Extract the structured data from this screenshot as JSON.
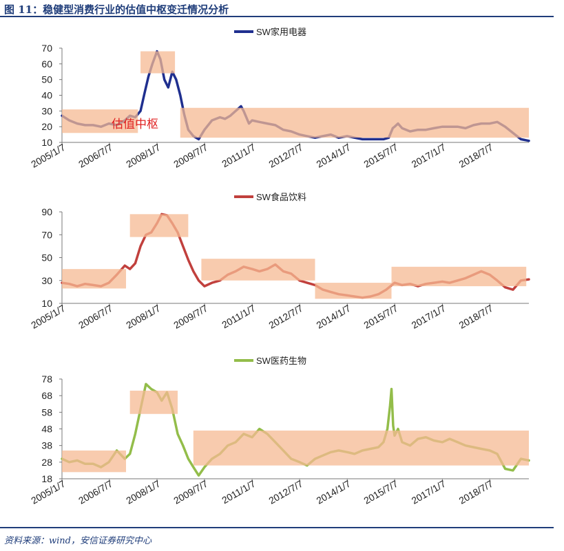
{
  "figure": {
    "title": "图 11：稳健型消费行业的估值中枢变迁情况分析",
    "source": "资料来源：wind，安信证券研究中心",
    "annotation": "估值中枢",
    "annotation_color": "#e02020",
    "band_color": "#f5b993"
  },
  "chart_data": [
    {
      "type": "line",
      "legend": "SW家用电器",
      "legend_position": "top-center",
      "color": "#1f2f8f",
      "y_ticks": [
        10,
        20,
        30,
        40,
        50,
        60,
        70
      ],
      "ylim": [
        10,
        70
      ],
      "x_ticks": [
        "2005/1/7",
        "2006/7/7",
        "2008/1/7",
        "2009/7/7",
        "2011/1/7",
        "2012/7/7",
        "2014/1/7",
        "2015/7/7",
        "2017/1/7",
        "2018/7/7"
      ],
      "xlim": [
        "2005/1/7",
        "2019/10/1"
      ],
      "x": [
        "2005/1/7",
        "2005/4/1",
        "2005/7/1",
        "2005/10/1",
        "2006/1/1",
        "2006/4/1",
        "2006/7/1",
        "2006/10/1",
        "2007/1/1",
        "2007/3/1",
        "2007/5/1",
        "2007/7/1",
        "2007/8/15",
        "2007/10/1",
        "2007/11/15",
        "2008/1/7",
        "2008/2/15",
        "2008/4/1",
        "2008/5/15",
        "2008/7/1",
        "2008/8/15",
        "2008/10/1",
        "2008/11/15",
        "2009/1/1",
        "2009/3/1",
        "2009/5/1",
        "2009/7/7",
        "2009/10/1",
        "2010/1/1",
        "2010/3/1",
        "2010/5/1",
        "2010/7/1",
        "2010/9/1",
        "2010/10/1",
        "2010/12/1",
        "2011/1/7",
        "2011/4/1",
        "2011/7/1",
        "2011/10/1",
        "2012/1/1",
        "2012/4/1",
        "2012/7/7",
        "2012/10/1",
        "2013/1/1",
        "2013/4/1",
        "2013/7/1",
        "2013/10/1",
        "2014/1/7",
        "2014/4/1",
        "2014/7/1",
        "2014/10/1",
        "2015/1/1",
        "2015/3/1",
        "2015/5/1",
        "2015/6/15",
        "2015/7/7",
        "2015/8/15",
        "2015/10/1",
        "2016/1/1",
        "2016/4/1",
        "2016/7/1",
        "2016/10/1",
        "2017/1/7",
        "2017/4/1",
        "2017/7/1",
        "2017/10/1",
        "2018/1/1",
        "2018/4/1",
        "2018/7/7",
        "2018/10/1",
        "2019/1/1",
        "2019/4/1",
        "2019/7/1",
        "2019/10/1"
      ],
      "values": [
        27,
        24,
        22,
        21,
        21,
        20,
        22,
        21,
        24,
        27,
        26,
        30,
        41,
        52,
        60,
        68,
        63,
        50,
        45,
        55,
        50,
        40,
        28,
        18,
        14,
        12,
        18,
        24,
        26,
        25,
        27,
        30,
        33,
        30,
        22,
        24,
        23,
        22,
        21,
        18,
        17,
        15,
        14,
        13,
        14,
        15,
        13,
        14,
        13,
        12,
        12,
        12,
        12,
        13,
        19,
        20,
        22,
        19,
        17,
        18,
        18,
        19,
        20,
        20,
        20,
        19,
        21,
        22,
        22,
        23,
        20,
        16,
        12,
        11
      ],
      "bands": [
        {
          "x0": "2005/1/7",
          "x1": "2007/6/1",
          "y0": 16,
          "y1": 31
        },
        {
          "x0": "2007/7/1",
          "x1": "2008/8/1",
          "y0": 54,
          "y1": 68
        },
        {
          "x0": "2008/10/1",
          "x1": "2019/10/1",
          "y0": 13,
          "y1": 32
        }
      ]
    },
    {
      "type": "line",
      "legend": "SW食品饮料",
      "legend_position": "top-center",
      "color": "#c1403d",
      "y_ticks": [
        10,
        30,
        50,
        70,
        90
      ],
      "ylim": [
        10,
        90
      ],
      "x_ticks": [
        "2005/1/7",
        "2006/7/7",
        "2008/1/7",
        "2009/7/7",
        "2011/1/7",
        "2012/7/7",
        "2014/1/7",
        "2015/7/7",
        "2017/1/7",
        "2018/7/7"
      ],
      "xlim": [
        "2005/1/7",
        "2019/10/1"
      ],
      "x": [
        "2005/1/7",
        "2005/4/1",
        "2005/7/1",
        "2005/10/1",
        "2006/1/1",
        "2006/4/1",
        "2006/7/1",
        "2006/10/1",
        "2007/1/1",
        "2007/3/1",
        "2007/5/1",
        "2007/7/1",
        "2007/9/1",
        "2007/11/1",
        "2008/1/7",
        "2008/3/1",
        "2008/5/1",
        "2008/7/1",
        "2008/9/1",
        "2008/11/1",
        "2009/1/1",
        "2009/3/1",
        "2009/5/1",
        "2009/7/7",
        "2009/10/1",
        "2010/1/1",
        "2010/4/1",
        "2010/7/1",
        "2010/10/1",
        "2011/1/7",
        "2011/4/1",
        "2011/7/1",
        "2011/10/1",
        "2012/1/1",
        "2012/4/1",
        "2012/7/7",
        "2012/10/1",
        "2013/1/1",
        "2013/4/1",
        "2013/7/1",
        "2013/10/1",
        "2014/1/7",
        "2014/4/1",
        "2014/7/1",
        "2014/10/1",
        "2015/1/1",
        "2015/4/1",
        "2015/7/7",
        "2015/10/1",
        "2016/1/1",
        "2016/4/1",
        "2016/7/1",
        "2016/10/1",
        "2017/1/7",
        "2017/4/1",
        "2017/7/1",
        "2017/10/1",
        "2018/1/1",
        "2018/4/1",
        "2018/7/7",
        "2018/10/1",
        "2019/1/1",
        "2019/4/1",
        "2019/7/1",
        "2019/10/1"
      ],
      "values": [
        28,
        27,
        25,
        27,
        26,
        25,
        28,
        35,
        43,
        40,
        45,
        60,
        70,
        72,
        80,
        88,
        87,
        80,
        72,
        60,
        48,
        38,
        30,
        25,
        28,
        30,
        35,
        38,
        42,
        40,
        38,
        40,
        44,
        38,
        36,
        30,
        28,
        26,
        22,
        20,
        18,
        17,
        16,
        15,
        16,
        18,
        22,
        28,
        26,
        27,
        25,
        27,
        28,
        29,
        28,
        30,
        32,
        35,
        38,
        35,
        30,
        24,
        22,
        30,
        31
      ],
      "bands": [
        {
          "x0": "2005/1/7",
          "x1": "2007/1/15",
          "y0": 23,
          "y1": 40
        },
        {
          "x0": "2007/3/1",
          "x1": "2009/1/1",
          "y0": 68,
          "y1": 88
        },
        {
          "x0": "2009/6/1",
          "x1": "2013/1/1",
          "y0": 30,
          "y1": 49
        },
        {
          "x0": "2013/1/1",
          "x1": "2015/6/1",
          "y0": 14,
          "y1": 28
        },
        {
          "x0": "2015/6/1",
          "x1": "2019/9/1",
          "y0": 25,
          "y1": 42
        }
      ]
    },
    {
      "type": "line",
      "legend": "SW医药生物",
      "legend_position": "top-center",
      "color": "#93bd4a",
      "y_ticks": [
        18,
        28,
        38,
        48,
        58,
        68,
        78
      ],
      "ylim": [
        18,
        78
      ],
      "x_ticks": [
        "2005/1/7",
        "2006/7/7",
        "2008/1/7",
        "2009/7/7",
        "2011/1/7",
        "2012/7/7",
        "2014/1/7",
        "2015/7/7",
        "2017/1/7",
        "2018/7/7"
      ],
      "xlim": [
        "2005/1/7",
        "2019/10/1"
      ],
      "x": [
        "2005/1/7",
        "2005/4/1",
        "2005/7/1",
        "2005/10/1",
        "2006/1/1",
        "2006/4/1",
        "2006/7/1",
        "2006/10/1",
        "2007/1/1",
        "2007/3/1",
        "2007/5/1",
        "2007/7/1",
        "2007/9/1",
        "2007/11/1",
        "2008/1/7",
        "2008/3/1",
        "2008/5/1",
        "2008/7/1",
        "2008/9/1",
        "2008/11/1",
        "2009/1/1",
        "2009/3/1",
        "2009/5/1",
        "2009/7/7",
        "2009/10/1",
        "2010/1/1",
        "2010/4/1",
        "2010/7/1",
        "2010/10/1",
        "2011/1/7",
        "2011/4/1",
        "2011/7/1",
        "2011/10/1",
        "2012/1/1",
        "2012/4/1",
        "2012/7/7",
        "2012/10/1",
        "2013/1/1",
        "2013/4/1",
        "2013/7/1",
        "2013/10/1",
        "2014/1/7",
        "2014/4/1",
        "2014/7/1",
        "2014/10/1",
        "2015/1/1",
        "2015/3/1",
        "2015/4/15",
        "2015/5/15",
        "2015/6/1",
        "2015/6/20",
        "2015/7/7",
        "2015/8/15",
        "2015/10/1",
        "2016/1/1",
        "2016/4/1",
        "2016/7/1",
        "2016/10/1",
        "2017/1/7",
        "2017/4/1",
        "2017/7/1",
        "2017/10/1",
        "2018/1/1",
        "2018/4/1",
        "2018/7/7",
        "2018/10/1",
        "2019/1/1",
        "2019/4/1",
        "2019/7/1",
        "2019/10/1"
      ],
      "values": [
        30,
        28,
        29,
        27,
        27,
        25,
        28,
        35,
        30,
        33,
        45,
        60,
        75,
        72,
        70,
        65,
        70,
        60,
        45,
        38,
        30,
        25,
        20,
        25,
        30,
        33,
        38,
        40,
        45,
        43,
        48,
        45,
        40,
        35,
        30,
        28,
        26,
        30,
        32,
        34,
        35,
        34,
        33,
        35,
        36,
        37,
        40,
        48,
        62,
        72,
        50,
        44,
        48,
        40,
        38,
        42,
        43,
        41,
        40,
        42,
        40,
        38,
        37,
        36,
        35,
        33,
        24,
        23,
        30,
        29
      ],
      "bands": [
        {
          "x0": "2005/1/7",
          "x1": "2007/1/15",
          "y0": 22,
          "y1": 35
        },
        {
          "x0": "2007/3/1",
          "x1": "2008/9/1",
          "y0": 57,
          "y1": 71
        },
        {
          "x0": "2009/3/1",
          "x1": "2019/10/1",
          "y0": 26,
          "y1": 47
        }
      ]
    }
  ]
}
